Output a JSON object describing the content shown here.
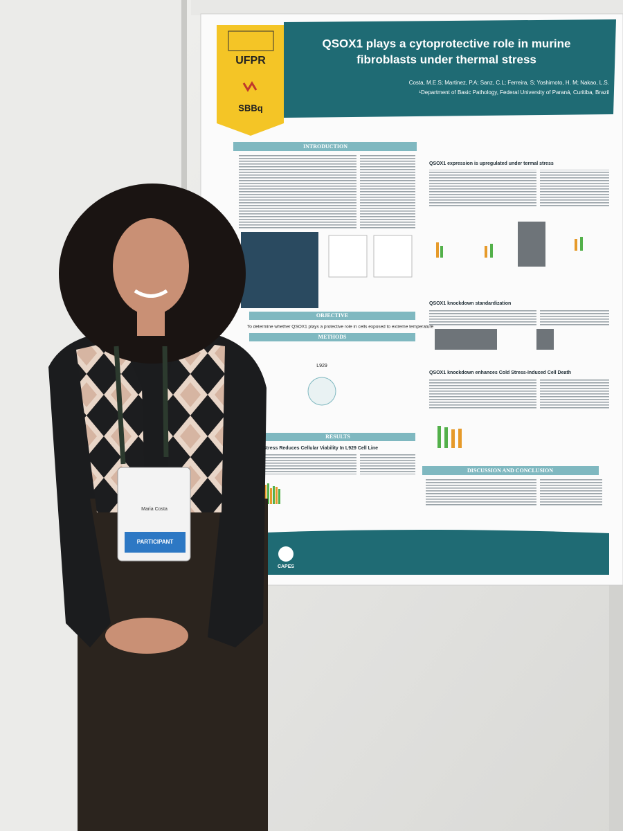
{
  "poster": {
    "logo_top": "UFPR",
    "logo_bottom": "SBBq",
    "title_line1": "QSOX1 plays a cytoprotective role in murine",
    "title_line2": "fibroblasts under thermal stress",
    "authors": "Costa, M.E.S; Martinez, P.A; Sanz, C.L; Ferreira, S; Yoshimoto, H. M; Nakao, L.S.",
    "affiliation": "¹Department of Basic Pathology, Federal University of Paraná, Curitiba, Brazil",
    "introduction": "INTRODUCTION",
    "objective": "OBJECTIVE",
    "objective_text": "To determine whether QSOX1 plays a protective role in cells exposed to extreme temperature",
    "methods": "METHODS",
    "methods_cell": "L929",
    "results": "RESULTS",
    "results_sub": "Stress Reduces Cellular Viability In L929 Cell Line",
    "r1": "QSOX1 expression is upregulated under termal stress",
    "r2": "QSOX1 knockdown standardization",
    "r3": "QSOX1 knockdown enhances Cold Stress-Induced Cell Death",
    "discussion": "DISCUSSION AND CONCLUSION",
    "footer_logo": "CAPES"
  },
  "badge": {
    "name": "Maria Costa",
    "role": "PARTICIPANT"
  }
}
